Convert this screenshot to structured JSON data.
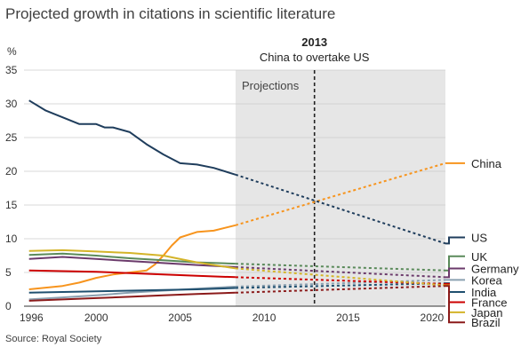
{
  "title": "Projected growth in citations in scientific literature",
  "source": "Source: Royal Society",
  "colors": {
    "projection_band": "#e6e6e6",
    "grid": "#cccccc",
    "axis": "#333333",
    "marker": "#222222"
  },
  "chart_data": {
    "type": "line",
    "title": "Projected growth in citations in scientific literature",
    "ylabel": "%",
    "xlim": [
      1995.7,
      2020.8
    ],
    "ylim": [
      0,
      35
    ],
    "x_ticks": [
      1996,
      2000,
      2005,
      2010,
      2015,
      2020
    ],
    "x_tick_labels": [
      "1996",
      "2000",
      "2005",
      "2010",
      "2015",
      "2020"
    ],
    "y_ticks": [
      0,
      5,
      10,
      15,
      20,
      25,
      30,
      35
    ],
    "y_tick_labels": [
      "0",
      "5",
      "10",
      "15",
      "20",
      "25",
      "30",
      "35"
    ],
    "grid": "horizontal",
    "legend": "right, end-of-line labels",
    "projection": {
      "start_year": 2008.3,
      "end_year": 2020.8,
      "label": "Projections"
    },
    "marker": {
      "year": 2013,
      "label_year": "2013",
      "label_text": "China to overtake US"
    },
    "series": [
      {
        "name": "China",
        "color": "#f7941d",
        "actual": [
          [
            1996,
            2.5
          ],
          [
            1998,
            3.0
          ],
          [
            1999,
            3.5
          ],
          [
            2000,
            4.2
          ],
          [
            2001,
            4.7
          ],
          [
            2002,
            5.0
          ],
          [
            2003,
            5.3
          ],
          [
            2003.5,
            6.2
          ],
          [
            2004,
            7.5
          ],
          [
            2004.5,
            9.0
          ],
          [
            2005,
            10.2
          ],
          [
            2006,
            11.0
          ],
          [
            2007,
            11.2
          ],
          [
            2008.3,
            12.0
          ]
        ],
        "projected_end": 21.2,
        "label_y": 21.2
      },
      {
        "name": "US",
        "color": "#1f3d5c",
        "actual": [
          [
            1996,
            30.5
          ],
          [
            1997,
            29.0
          ],
          [
            1998,
            28.0
          ],
          [
            1999,
            27.0
          ],
          [
            2000,
            27.0
          ],
          [
            2000.5,
            26.5
          ],
          [
            2001,
            26.5
          ],
          [
            2002,
            25.8
          ],
          [
            2003,
            24.0
          ],
          [
            2004,
            22.5
          ],
          [
            2005,
            21.2
          ],
          [
            2006,
            21.0
          ],
          [
            2007,
            20.5
          ],
          [
            2008.3,
            19.5
          ]
        ],
        "projected_end": 9.3,
        "label_y": 10.2
      },
      {
        "name": "UK",
        "color": "#5a8a5a",
        "actual": [
          [
            1996,
            7.6
          ],
          [
            1998,
            7.8
          ],
          [
            2000,
            7.5
          ],
          [
            2002,
            7.1
          ],
          [
            2004,
            6.8
          ],
          [
            2006,
            6.5
          ],
          [
            2008.3,
            6.3
          ]
        ],
        "projected_end": 5.3,
        "label_y": 7.4
      },
      {
        "name": "Germany",
        "color": "#6b3a6b",
        "actual": [
          [
            1996,
            7.0
          ],
          [
            1998,
            7.3
          ],
          [
            2000,
            7.0
          ],
          [
            2002,
            6.7
          ],
          [
            2004,
            6.4
          ],
          [
            2006,
            6.1
          ],
          [
            2008.3,
            5.8
          ]
        ],
        "projected_end": 4.3,
        "label_y": 5.6
      },
      {
        "name": "Korea",
        "color": "#8aa0b0",
        "actual": [
          [
            1996,
            1.0
          ],
          [
            1998,
            1.3
          ],
          [
            2000,
            1.6
          ],
          [
            2002,
            2.0
          ],
          [
            2004,
            2.3
          ],
          [
            2006,
            2.6
          ],
          [
            2008.3,
            2.9
          ]
        ],
        "projected_end": 3.9,
        "label_y": 3.9
      },
      {
        "name": "India",
        "color": "#1f4f6f",
        "actual": [
          [
            1996,
            2.0
          ],
          [
            1998,
            2.1
          ],
          [
            2000,
            2.2
          ],
          [
            2002,
            2.3
          ],
          [
            2004,
            2.4
          ],
          [
            2006,
            2.5
          ],
          [
            2008.3,
            2.7
          ]
        ],
        "projected_end": 3.4,
        "label_y": 2.1
      },
      {
        "name": "France",
        "color": "#cc0000",
        "actual": [
          [
            1996,
            5.3
          ],
          [
            1998,
            5.2
          ],
          [
            2000,
            5.1
          ],
          [
            2002,
            4.9
          ],
          [
            2004,
            4.7
          ],
          [
            2006,
            4.5
          ],
          [
            2008.3,
            4.3
          ]
        ],
        "projected_end": 3.3,
        "label_y": 0.6
      },
      {
        "name": "Japan",
        "color": "#d4b429",
        "actual": [
          [
            1996,
            8.2
          ],
          [
            1998,
            8.3
          ],
          [
            2000,
            8.1
          ],
          [
            2002,
            7.9
          ],
          [
            2004,
            7.5
          ],
          [
            2006,
            6.5
          ],
          [
            2008.3,
            5.6
          ]
        ],
        "projected_end": 3.1,
        "label_y": -0.9
      },
      {
        "name": "Brazil",
        "color": "#8b1a1a",
        "actual": [
          [
            1996,
            0.8
          ],
          [
            1998,
            1.0
          ],
          [
            2000,
            1.2
          ],
          [
            2002,
            1.4
          ],
          [
            2004,
            1.6
          ],
          [
            2006,
            1.8
          ],
          [
            2008.3,
            2.0
          ]
        ],
        "projected_end": 3.0,
        "label_y": -2.4
      }
    ]
  }
}
